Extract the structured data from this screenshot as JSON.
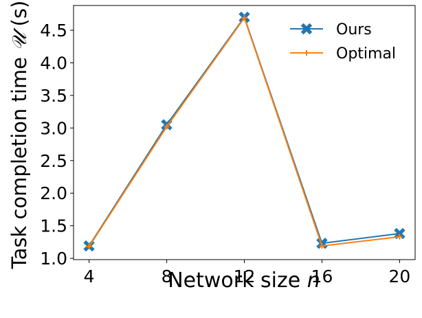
{
  "chart_data": {
    "type": "line",
    "xlabel": "Network size n",
    "ylabel": "Task completion time 𝒰 (s)",
    "x": [
      4,
      8,
      12,
      16,
      20
    ],
    "xticks": [
      "4",
      "8",
      "12",
      "16",
      "20"
    ],
    "yticks": [
      "1.0",
      "1.5",
      "2.0",
      "2.5",
      "3.0",
      "3.5",
      "4.0",
      "4.5"
    ],
    "xlim": [
      3.2,
      20.8
    ],
    "ylim": [
      0.98,
      4.88
    ],
    "grid": false,
    "legend_position": "top-right",
    "series": [
      {
        "name": "Ours",
        "color": "#1f77b4",
        "marker": "X",
        "values": [
          1.19,
          3.05,
          4.7,
          1.23,
          1.38
        ]
      },
      {
        "name": "Optimal",
        "color": "#ff7f0e",
        "marker": "+",
        "values": [
          1.18,
          3.02,
          4.69,
          1.19,
          1.33
        ]
      }
    ]
  }
}
